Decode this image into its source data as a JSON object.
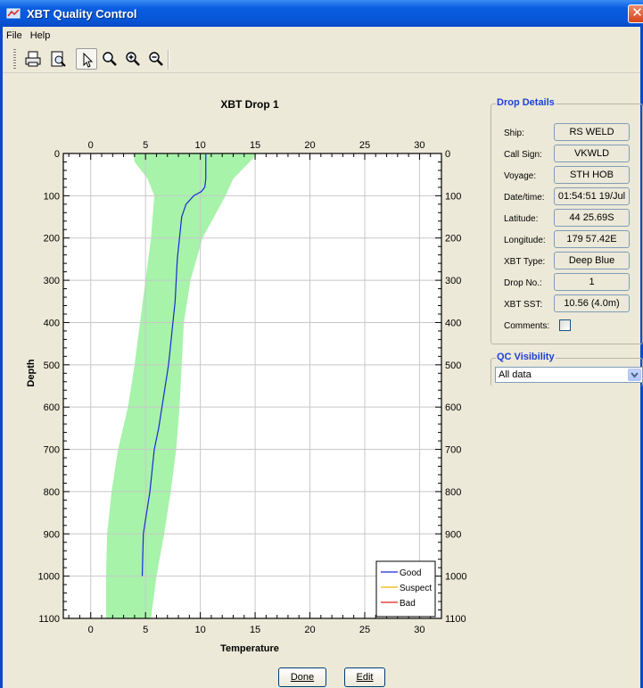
{
  "window": {
    "title": "XBT Quality Control",
    "close_glyph": "✕"
  },
  "menu": [
    {
      "label": "File"
    },
    {
      "label": "Help"
    }
  ],
  "toolbar": {
    "buttons": [
      {
        "icon": "print-icon"
      },
      {
        "icon": "print-preview-icon"
      },
      {
        "icon": "pointer-icon"
      },
      {
        "icon": "zoom-icon"
      },
      {
        "icon": "zoom-in-icon"
      },
      {
        "icon": "zoom-out-icon"
      }
    ]
  },
  "drop_details": {
    "title": "Drop Details",
    "fields": [
      {
        "label": "Ship:",
        "value": "RS WELD"
      },
      {
        "label": "Call Sign:",
        "value": "VKWLD"
      },
      {
        "label": "Voyage:",
        "value": "STH HOB"
      },
      {
        "label": "Date/time:",
        "value": "01:54:51 19/Jul"
      },
      {
        "label": "Latitude:",
        "value": "44 25.69S"
      },
      {
        "label": "Longitude:",
        "value": "179 57.42E"
      },
      {
        "label": "XBT Type:",
        "value": "Deep Blue"
      },
      {
        "label": "Drop No.:",
        "value": "1"
      },
      {
        "label": "XBT SST:",
        "value": "10.56 (4.0m)"
      }
    ],
    "comments_label": "Comments:"
  },
  "qc_visibility": {
    "title": "QC Visibility",
    "selected": "All data"
  },
  "buttons": {
    "done": "Done",
    "edit": "Edit"
  },
  "chart_data": {
    "type": "line",
    "title": "XBT Drop 1",
    "xlabel": "Temperature",
    "ylabel": "Depth",
    "xlim": [
      -2.5,
      32
    ],
    "ylim": [
      1100,
      0
    ],
    "x_ticks": [
      0,
      5,
      10,
      15,
      20,
      25,
      30
    ],
    "y_ticks": [
      0,
      100,
      200,
      300,
      400,
      500,
      600,
      700,
      800,
      900,
      1000,
      1100
    ],
    "grid": true,
    "legend_position": "bottom-right",
    "colors": {
      "good": "#1a28d8",
      "suspect": "#f0b400",
      "bad": "#e0201c",
      "band": "#a6f3a9"
    },
    "series": [
      {
        "name": "Good",
        "color": "#1a28d8",
        "x": [
          10.5,
          10.5,
          10.5,
          10.4,
          10.1,
          9.4,
          8.7,
          8.3,
          8.1,
          7.9,
          7.8,
          7.7,
          7.5,
          7.3,
          7.1,
          6.8,
          6.5,
          6.2,
          5.8,
          5.4,
          5.1,
          4.8,
          4.7
        ],
        "y": [
          0,
          30,
          60,
          80,
          90,
          100,
          120,
          150,
          200,
          250,
          300,
          350,
          400,
          450,
          500,
          550,
          600,
          650,
          700,
          800,
          850,
          900,
          1000
        ]
      },
      {
        "name": "Suspect",
        "color": "#f0b400",
        "x": [],
        "y": []
      },
      {
        "name": "Bad",
        "color": "#e0201c",
        "x": [],
        "y": []
      }
    ],
    "band": {
      "depth": [
        0,
        20,
        60,
        100,
        200,
        300,
        400,
        500,
        600,
        700,
        800,
        900,
        1000,
        1100
      ],
      "min": [
        3.9,
        4.0,
        5.2,
        5.8,
        5.5,
        5.0,
        4.5,
        4.0,
        3.4,
        2.5,
        1.9,
        1.5,
        1.4,
        1.4
      ],
      "max": [
        15.2,
        14.5,
        13.0,
        12.3,
        10.2,
        9.1,
        8.5,
        8.3,
        8.1,
        7.8,
        7.3,
        6.7,
        6.0,
        5.5
      ]
    }
  }
}
